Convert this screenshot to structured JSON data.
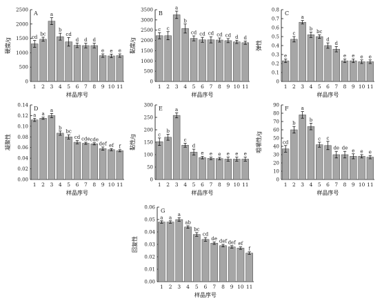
{
  "chart_data": [
    {
      "type": "bar",
      "panel": "A",
      "xlabel": "样品序号",
      "ylabel": "硬度/g",
      "categories": [
        "1",
        "2",
        "3",
        "4",
        "5",
        "6",
        "7",
        "8",
        "9",
        "10",
        "11"
      ],
      "values": [
        1310,
        1470,
        2100,
        1560,
        1380,
        1260,
        1250,
        1250,
        900,
        890,
        900
      ],
      "errors": [
        120,
        70,
        120,
        120,
        150,
        80,
        80,
        80,
        60,
        60,
        60
      ],
      "letters": [
        "cd",
        "bc",
        "a",
        "b",
        "cd",
        "d",
        "d",
        "d",
        "e",
        "e",
        "e"
      ],
      "ylim": [
        0,
        2500
      ],
      "yticks": [
        0,
        500,
        1000,
        1500,
        2000,
        2500
      ],
      "ytick_labels": [
        "0",
        "500",
        "1000",
        "1500",
        "2000",
        "2500"
      ]
    },
    {
      "type": "bar",
      "panel": "B",
      "xlabel": "样品序号",
      "ylabel": "黏度/g",
      "categories": [
        "1",
        "2",
        "3",
        "4",
        "5",
        "6",
        "7",
        "8",
        "9",
        "10",
        "11"
      ],
      "values": [
        2230,
        2230,
        3250,
        2580,
        2100,
        2030,
        2030,
        2020,
        1990,
        1930,
        1890
      ],
      "errors": [
        150,
        200,
        180,
        220,
        120,
        120,
        150,
        100,
        100,
        80,
        80
      ],
      "letters": [
        "c",
        "c",
        "a",
        "b",
        "cd",
        "cd",
        "cd",
        "cd",
        "cd",
        "d",
        "d"
      ],
      "ylim": [
        0,
        3500
      ],
      "yticks": [
        0,
        500,
        1000,
        1500,
        2000,
        2500,
        3000,
        3500
      ],
      "ytick_labels": [
        "0",
        "500",
        "1000",
        "1500",
        "2000",
        "2500",
        "3000",
        "3500"
      ]
    },
    {
      "type": "bar",
      "panel": "C",
      "xlabel": "样品序号",
      "ylabel": "弹性",
      "categories": [
        "1",
        "2",
        "3",
        "4",
        "5",
        "6",
        "7",
        "8",
        "9",
        "10",
        "11"
      ],
      "values": [
        0.23,
        0.47,
        0.66,
        0.52,
        0.5,
        0.4,
        0.36,
        0.23,
        0.23,
        0.22,
        0.22
      ],
      "errors": [
        0.02,
        0.03,
        0.02,
        0.03,
        0.02,
        0.03,
        0.03,
        0.02,
        0.02,
        0.02,
        0.02
      ],
      "letters": [
        "e",
        "c",
        "a",
        "b",
        "bc",
        "d",
        "d",
        "e",
        "e",
        "e",
        "e"
      ],
      "ylim": [
        0,
        0.8
      ],
      "yticks": [
        0,
        0.1,
        0.2,
        0.3,
        0.4,
        0.5,
        0.6,
        0.7,
        0.8
      ],
      "ytick_labels": [
        "0",
        "0.1",
        "0.2",
        "0.3",
        "0.4",
        "0.5",
        "0.6",
        "0.7",
        "0.8"
      ]
    },
    {
      "type": "bar",
      "panel": "D",
      "xlabel": "样品序号",
      "ylabel": "凝聚性",
      "categories": [
        "1",
        "2",
        "3",
        "4",
        "5",
        "6",
        "7",
        "8",
        "9",
        "10",
        "11"
      ],
      "values": [
        0.112,
        0.115,
        0.12,
        0.087,
        0.08,
        0.07,
        0.068,
        0.067,
        0.058,
        0.056,
        0.054
      ],
      "errors": [
        0.003,
        0.002,
        0.004,
        0.004,
        0.004,
        0.003,
        0.002,
        0.002,
        0.003,
        0.002,
        0.002
      ],
      "letters": [
        "a",
        "a",
        "a",
        "b",
        "bc",
        "cd",
        "cde",
        "cde",
        "def",
        "ef",
        "f"
      ],
      "ylim": [
        0,
        0.14
      ],
      "yticks": [
        0,
        0.02,
        0.04,
        0.06,
        0.08,
        0.1,
        0.12,
        0.14
      ],
      "ytick_labels": [
        "0.00",
        "0.02",
        "0.04",
        "0.06",
        "0.08",
        "0.10",
        "0.12",
        "0.14"
      ]
    },
    {
      "type": "bar",
      "panel": "E",
      "xlabel": "样品序号",
      "ylabel": "黏性/g",
      "categories": [
        "1",
        "2",
        "3",
        "4",
        "5",
        "6",
        "7",
        "8",
        "9",
        "10",
        "11"
      ],
      "values": [
        152,
        170,
        258,
        138,
        110,
        88,
        85,
        84,
        82,
        82,
        82
      ],
      "errors": [
        15,
        12,
        10,
        8,
        12,
        5,
        5,
        5,
        8,
        8,
        8
      ],
      "letters": [
        "c",
        "b",
        "a",
        "c",
        "d",
        "e",
        "e",
        "e",
        "e",
        "e",
        "e"
      ],
      "ylim": [
        0,
        300
      ],
      "yticks": [
        0,
        50,
        100,
        150,
        200,
        250,
        300
      ],
      "ytick_labels": [
        "0",
        "50",
        "100",
        "150",
        "200",
        "250",
        "300"
      ]
    },
    {
      "type": "bar",
      "panel": "F",
      "xlabel": "样品序号",
      "ylabel": "咀嚼性/g",
      "categories": [
        "1",
        "2",
        "3",
        "4",
        "5",
        "6",
        "7",
        "8",
        "9",
        "10",
        "11"
      ],
      "values": [
        37,
        60,
        78,
        64,
        42,
        41,
        30,
        30,
        28,
        28,
        27
      ],
      "errors": [
        4,
        4,
        4,
        4,
        3,
        5,
        4,
        4,
        3,
        2,
        2
      ],
      "letters": [
        "cd",
        "b",
        "a",
        "b",
        "c",
        "c",
        "de",
        "de",
        "e",
        "e",
        "e"
      ],
      "ylim": [
        0,
        90
      ],
      "yticks": [
        0,
        10,
        20,
        30,
        40,
        50,
        60,
        70,
        80,
        90
      ],
      "ytick_labels": [
        "0",
        "10",
        "20",
        "30",
        "40",
        "50",
        "60",
        "70",
        "80",
        "90"
      ]
    },
    {
      "type": "bar",
      "panel": "G",
      "xlabel": "样品序号",
      "ylabel": "回复性",
      "categories": [
        "1",
        "2",
        "3",
        "4",
        "5",
        "6",
        "7",
        "8",
        "9",
        "10",
        "11"
      ],
      "values": [
        0.048,
        0.048,
        0.05,
        0.044,
        0.038,
        0.034,
        0.031,
        0.029,
        0.028,
        0.027,
        0.023
      ],
      "errors": [
        0.001,
        0.001,
        0.0015,
        0.001,
        0.0015,
        0.0015,
        0.001,
        0.001,
        0.001,
        0.001,
        0.001
      ],
      "letters": [
        "a",
        "a",
        "a",
        "ab",
        "bc",
        "cd",
        "de",
        "def",
        "def",
        "ef",
        "f"
      ],
      "ylim": [
        0,
        0.06
      ],
      "yticks": [
        0,
        0.01,
        0.02,
        0.03,
        0.04,
        0.05,
        0.06
      ],
      "ytick_labels": [
        "0.00",
        "0.01",
        "0.02",
        "0.03",
        "0.04",
        "0.05",
        "0.06"
      ]
    }
  ]
}
